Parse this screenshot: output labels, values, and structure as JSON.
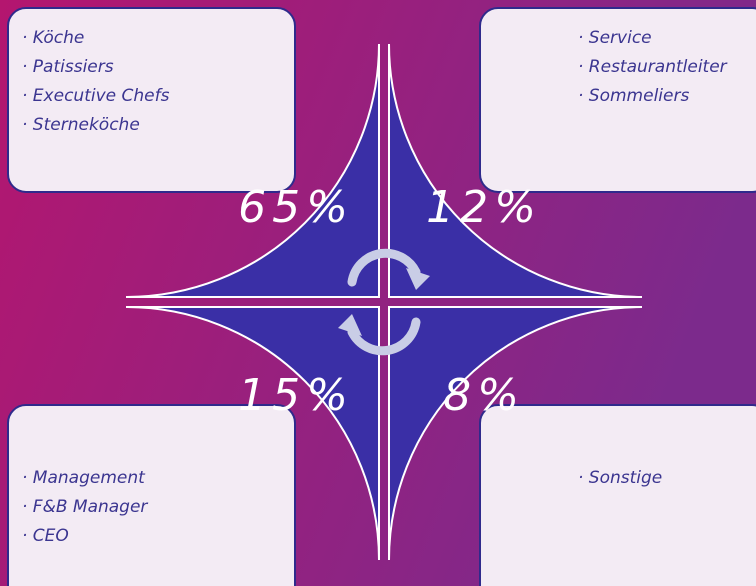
{
  "quadrants": [
    {
      "value": "65%",
      "items": [
        "· Köche",
        "· Patissiers",
        "· Executive Chefs",
        "· Sterneköche"
      ]
    },
    {
      "value": "12%",
      "items": [
        "· Service",
        "· Restaurantleiter",
        "· Sommeliers"
      ]
    },
    {
      "value": "15%",
      "items": [
        "· Management",
        "· F&B Manager",
        "· CEO"
      ]
    },
    {
      "value": "8%",
      "items": [
        "· Sonstige"
      ]
    }
  ]
}
